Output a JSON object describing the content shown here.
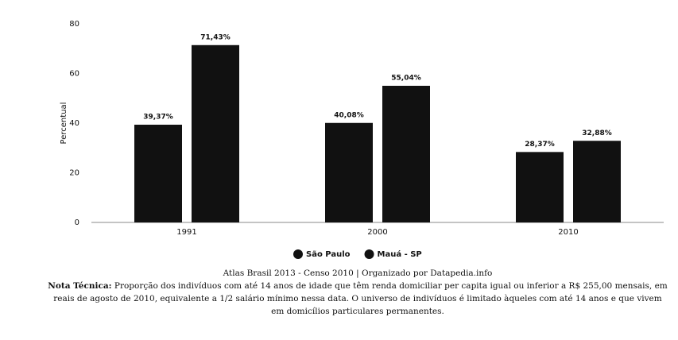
{
  "chart_data": {
    "type": "bar",
    "y_label": "Percentual",
    "categories": [
      "1991",
      "2000",
      "2010"
    ],
    "series": [
      {
        "name": "São Paulo",
        "color": "#111111",
        "values": [
          39.37,
          40.08,
          28.37
        ],
        "value_labels": [
          "39,37%",
          "40,08%",
          "28,37%"
        ]
      },
      {
        "name": "Mauá - SP",
        "color": "#111111",
        "values": [
          71.43,
          55.04,
          32.88
        ],
        "value_labels": [
          "71,43%",
          "55,04%",
          "32,88%"
        ]
      }
    ],
    "ylim": [
      0,
      80
    ],
    "yticks": [
      0,
      20,
      40,
      60,
      80
    ],
    "grid": false,
    "legend": "bottom",
    "source": "Atlas Brasil 2013 - Censo 2010 | Organizado por Datapedia.info",
    "note_label": "Nota Técnica:",
    "note": "Proporção dos indivíduos com até 14 anos de idade que têm renda domiciliar per capita igual ou inferior a R$ 255,00 mensais, em reais de agosto de 2010, equivalente a 1/2 salário mínimo nessa data. O universo de indivíduos é limitado àqueles com até 14 anos e que vivem em domicílios particulares permanentes."
  }
}
